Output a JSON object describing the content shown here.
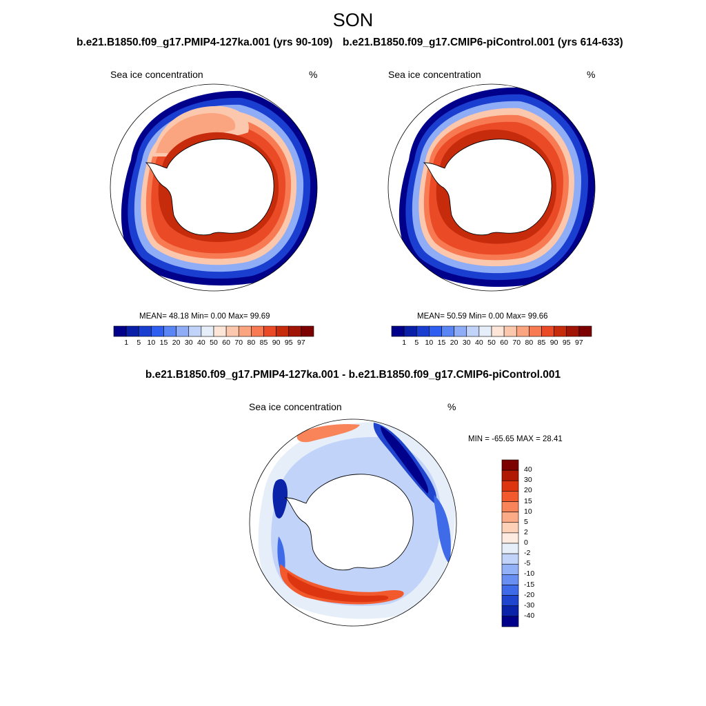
{
  "figure": {
    "season": "SON",
    "left_title": "b.e21.B1850.f09_g17.PMIP4-127ka.001 (yrs 90-109)",
    "right_title": "b.e21.B1850.f09_g17.CMIP6-piControl.001 (yrs 614-633)",
    "diff_title": "b.e21.B1850.f09_g17.PMIP4-127ka.001 - b.e21.B1850.f09_g17.CMIP6-piControl.001"
  },
  "panels": [
    {
      "variable": "Sea ice concentration",
      "units": "%",
      "stats": "MEAN=  48.18  Min=   0.00  Max=  99.69"
    },
    {
      "variable": "Sea ice concentration",
      "units": "%",
      "stats": "MEAN=  50.59  Min=   0.00  Max=  99.66"
    },
    {
      "variable": "Sea ice concentration",
      "units": "%",
      "stats": "MIN = -65.65 MAX =  28.41"
    }
  ],
  "colorbar_abs": {
    "labels": [
      "1",
      "5",
      "10",
      "15",
      "20",
      "30",
      "40",
      "50",
      "60",
      "70",
      "80",
      "85",
      "90",
      "95",
      "97"
    ],
    "colors": [
      "#00008b",
      "#0a1fa8",
      "#1a3fd0",
      "#2f5ff0",
      "#5a86f5",
      "#8eadf6",
      "#c1d3f8",
      "#e6eefa",
      "#fde5d7",
      "#fcc8ad",
      "#fba580",
      "#f87a52",
      "#ea4a25",
      "#c62b0c",
      "#a01505",
      "#7c0000"
    ]
  },
  "colorbar_diff": {
    "labels": [
      "40",
      "30",
      "20",
      "15",
      "10",
      "5",
      "2",
      "0",
      "-2",
      "-5",
      "-10",
      "-15",
      "-20",
      "-30",
      "-40"
    ],
    "colors": [
      "#7c0000",
      "#b01a05",
      "#dc3510",
      "#f25a2e",
      "#f9845a",
      "#fcab88",
      "#fdd1b8",
      "#fdeae0",
      "#e6eefa",
      "#c1d3f8",
      "#93b1f6",
      "#6a8ff3",
      "#3f6ae8",
      "#1f45cf",
      "#0a23a8",
      "#00008b"
    ]
  }
}
